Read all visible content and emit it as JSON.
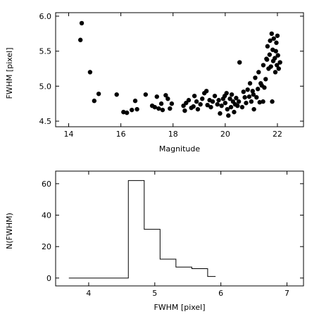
{
  "chart_data": [
    {
      "type": "scatter",
      "xlabel": "Magnitude",
      "ylabel": "FWHM [pixel]",
      "xlim": [
        13.5,
        23.0
      ],
      "ylim": [
        4.42,
        6.05
      ],
      "xticks": [
        14,
        16,
        18,
        20,
        22
      ],
      "yticks": [
        4.5,
        5.0,
        5.5,
        6.0
      ],
      "x_ticklabels": [
        "14",
        "16",
        "18",
        "20",
        "22"
      ],
      "y_ticklabels": [
        "4.5",
        "5.0",
        "5.5",
        "6.0"
      ],
      "grid": false,
      "points": [
        [
          14.5,
          5.9
        ],
        [
          14.45,
          5.66
        ],
        [
          14.82,
          5.2
        ],
        [
          15.15,
          4.89
        ],
        [
          14.98,
          4.79
        ],
        [
          15.84,
          4.88
        ],
        [
          16.1,
          4.63
        ],
        [
          16.23,
          4.62
        ],
        [
          16.42,
          4.66
        ],
        [
          16.62,
          4.67
        ],
        [
          16.55,
          4.79
        ],
        [
          16.95,
          4.88
        ],
        [
          17.2,
          4.72
        ],
        [
          17.3,
          4.7
        ],
        [
          17.38,
          4.85
        ],
        [
          17.45,
          4.68
        ],
        [
          17.55,
          4.75
        ],
        [
          17.6,
          4.66
        ],
        [
          17.72,
          4.87
        ],
        [
          17.8,
          4.82
        ],
        [
          17.88,
          4.68
        ],
        [
          17.95,
          4.75
        ],
        [
          18.4,
          4.72
        ],
        [
          18.45,
          4.65
        ],
        [
          18.5,
          4.76
        ],
        [
          18.6,
          4.8
        ],
        [
          18.7,
          4.69
        ],
        [
          18.78,
          4.71
        ],
        [
          18.82,
          4.86
        ],
        [
          18.9,
          4.78
        ],
        [
          18.95,
          4.67
        ],
        [
          19.05,
          4.74
        ],
        [
          19.12,
          4.82
        ],
        [
          19.2,
          4.9
        ],
        [
          19.28,
          4.93
        ],
        [
          19.32,
          4.73
        ],
        [
          19.4,
          4.8
        ],
        [
          19.45,
          4.7
        ],
        [
          19.52,
          4.78
        ],
        [
          19.6,
          4.86
        ],
        [
          19.7,
          4.74
        ],
        [
          19.75,
          4.8
        ],
        [
          19.8,
          4.61
        ],
        [
          19.86,
          4.72
        ],
        [
          19.92,
          4.82
        ],
        [
          19.98,
          4.86
        ],
        [
          20.0,
          4.76
        ],
        [
          20.05,
          4.9
        ],
        [
          20.08,
          4.67
        ],
        [
          20.12,
          4.58
        ],
        [
          20.18,
          4.82
        ],
        [
          20.22,
          4.7
        ],
        [
          20.25,
          4.88
        ],
        [
          20.3,
          4.78
        ],
        [
          20.34,
          4.63
        ],
        [
          20.38,
          4.74
        ],
        [
          20.42,
          4.83
        ],
        [
          20.47,
          4.72
        ],
        [
          20.52,
          4.78
        ],
        [
          20.55,
          5.34
        ],
        [
          20.65,
          4.7
        ],
        [
          20.7,
          4.92
        ],
        [
          20.75,
          4.84
        ],
        [
          20.8,
          4.76
        ],
        [
          20.86,
          4.95
        ],
        [
          20.92,
          4.85
        ],
        [
          20.95,
          5.04
        ],
        [
          21.0,
          4.78
        ],
        [
          21.05,
          4.93
        ],
        [
          21.08,
          4.88
        ],
        [
          21.1,
          4.67
        ],
        [
          21.15,
          5.12
        ],
        [
          21.2,
          4.84
        ],
        [
          21.25,
          4.96
        ],
        [
          21.28,
          5.2
        ],
        [
          21.32,
          4.77
        ],
        [
          21.36,
          5.04
        ],
        [
          21.4,
          5.01
        ],
        [
          21.46,
          5.3
        ],
        [
          21.5,
          4.98
        ],
        [
          21.55,
          5.1
        ],
        [
          21.58,
          5.39
        ],
        [
          21.62,
          5.57
        ],
        [
          21.66,
          5.25
        ],
        [
          21.7,
          5.45
        ],
        [
          21.72,
          5.65
        ],
        [
          21.75,
          5.28
        ],
        [
          21.78,
          5.75
        ],
        [
          21.82,
          5.52
        ],
        [
          21.84,
          5.36
        ],
        [
          21.86,
          5.68
        ],
        [
          21.9,
          5.4
        ],
        [
          21.92,
          5.2
        ],
        [
          21.94,
          5.5
        ],
        [
          21.96,
          5.62
        ],
        [
          21.98,
          5.3
        ],
        [
          22.0,
          5.72
        ],
        [
          22.02,
          5.44
        ],
        [
          22.05,
          5.25
        ],
        [
          22.1,
          5.34
        ],
        [
          21.8,
          4.78
        ],
        [
          21.45,
          4.78
        ],
        [
          21.6,
          5.38
        ]
      ]
    },
    {
      "type": "histogram",
      "xlabel": "FWHM [pixel]",
      "ylabel": "N(FWHM)",
      "xlim": [
        3.5,
        7.25
      ],
      "ylim": [
        -5,
        68
      ],
      "xticks": [
        4,
        5,
        6,
        7
      ],
      "yticks": [
        0,
        20,
        40,
        60
      ],
      "x_ticklabels": [
        "4",
        "5",
        "6",
        "7"
      ],
      "y_ticklabels": [
        "0",
        "20",
        "40",
        "60"
      ],
      "grid": false,
      "bin_edges": [
        3.7,
        4.6,
        4.84,
        5.08,
        5.32,
        5.56,
        5.8,
        5.92
      ],
      "counts": [
        0,
        62,
        31,
        12,
        7,
        6,
        1
      ]
    }
  ]
}
